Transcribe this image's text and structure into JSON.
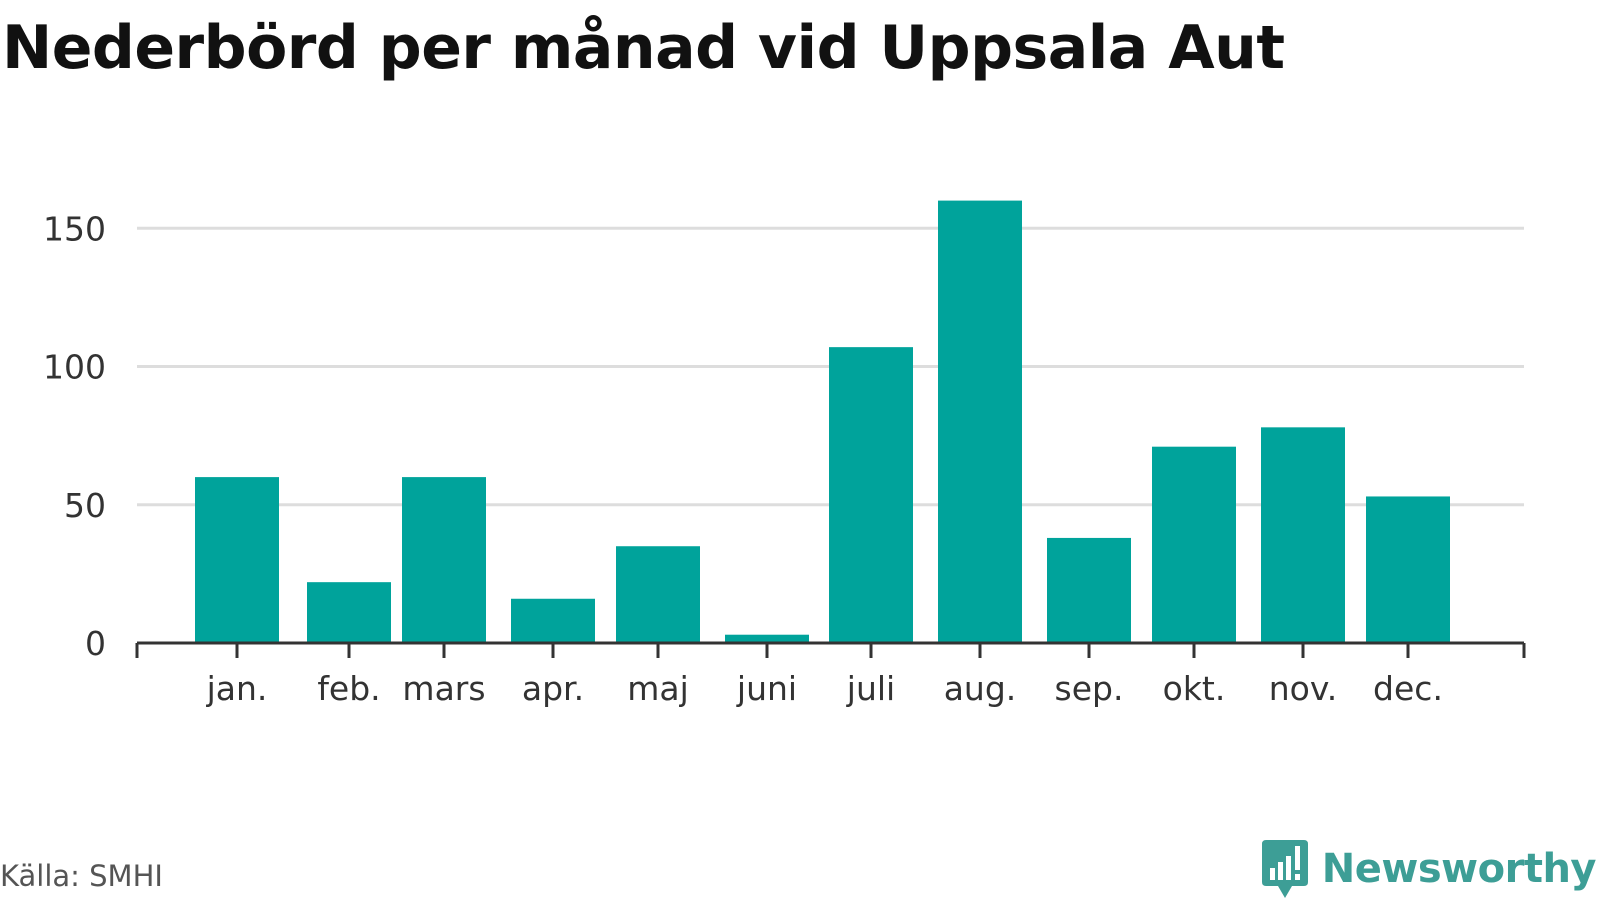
{
  "header": {
    "title": "Nederbörd per månad vid Uppsala Aut"
  },
  "footer": {
    "source": "Källa: SMHI",
    "brand_name": "Newsworthy",
    "brand_icon": "newsworthy-logo-icon",
    "brand_color": "#3d9e96"
  },
  "colors": {
    "bar": "#00a39b",
    "grid": "#dddddd",
    "axis": "#333333"
  },
  "chart_data": {
    "type": "bar",
    "title": "Nederbörd per månad vid Uppsala Aut",
    "xlabel": "",
    "ylabel": "",
    "categories": [
      "jan.",
      "feb.",
      "mars",
      "apr.",
      "maj",
      "juni",
      "juli",
      "aug.",
      "sep.",
      "okt.",
      "nov.",
      "dec."
    ],
    "values": [
      60,
      22,
      60,
      16,
      35,
      3,
      107,
      160,
      38,
      71,
      78,
      53
    ],
    "ylim": [
      0,
      165
    ],
    "yticks": [
      0,
      50,
      100,
      150
    ],
    "grid": true,
    "legend": "none"
  }
}
